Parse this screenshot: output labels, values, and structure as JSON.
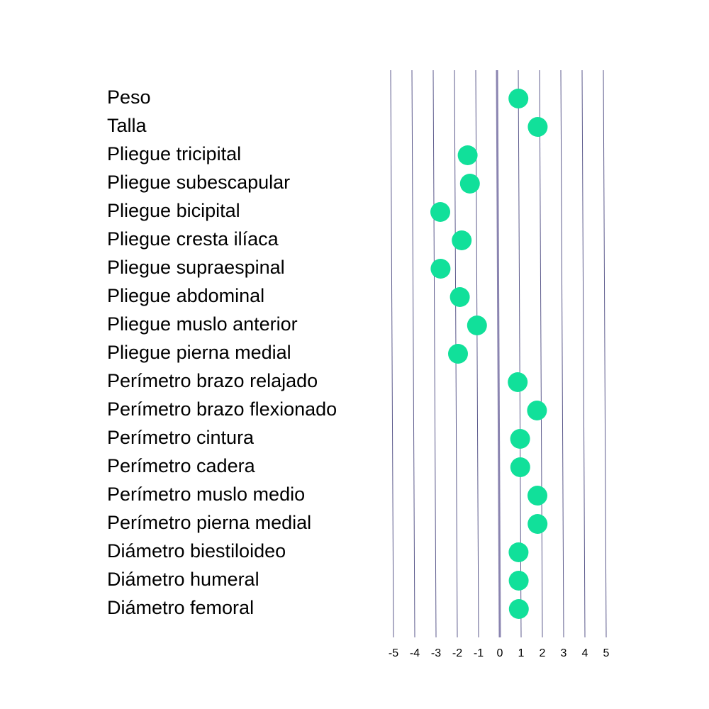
{
  "chart_data": {
    "type": "scatter",
    "title": "",
    "xlabel": "",
    "ylabel": "",
    "xlim": [
      -5,
      5
    ],
    "x_ticks": [
      -5,
      -4,
      -3,
      -2,
      -1,
      0,
      1,
      2,
      3,
      4,
      5
    ],
    "x_tick_labels": [
      "-5",
      "-4",
      "-3",
      "-2",
      "-1",
      "0",
      "1",
      "2",
      "3",
      "4",
      "5"
    ],
    "grid": "vertical",
    "categories": [
      "Peso",
      "Talla",
      "Pliegue tricipital",
      "Pliegue subescapular",
      "Pliegue bicipital",
      "Pliegue cresta ilíaca",
      "Pliegue supraespinal",
      "Pliegue abdominal",
      "Pliegue muslo anterior",
      "Pliegue pierna medial",
      "Perímetro brazo relajado",
      "Perímetro brazo flexionado",
      "Perímetro cintura",
      "Perímetro cadera",
      "Perímetro muslo medio",
      "Perímetro pierna medial",
      "Diámetro biestiloideo",
      "Diámetro humeral",
      "Diámetro femoral"
    ],
    "values": [
      1.0,
      1.9,
      -1.4,
      -1.3,
      -2.7,
      -1.7,
      -2.7,
      -1.8,
      -1.0,
      -1.9,
      0.9,
      1.8,
      1.0,
      1.0,
      1.8,
      1.8,
      0.9,
      0.9,
      0.9
    ],
    "colors": {
      "point": "#11e09a",
      "grid": "#5c5a8c",
      "zero_line": "#8a84b0"
    }
  }
}
